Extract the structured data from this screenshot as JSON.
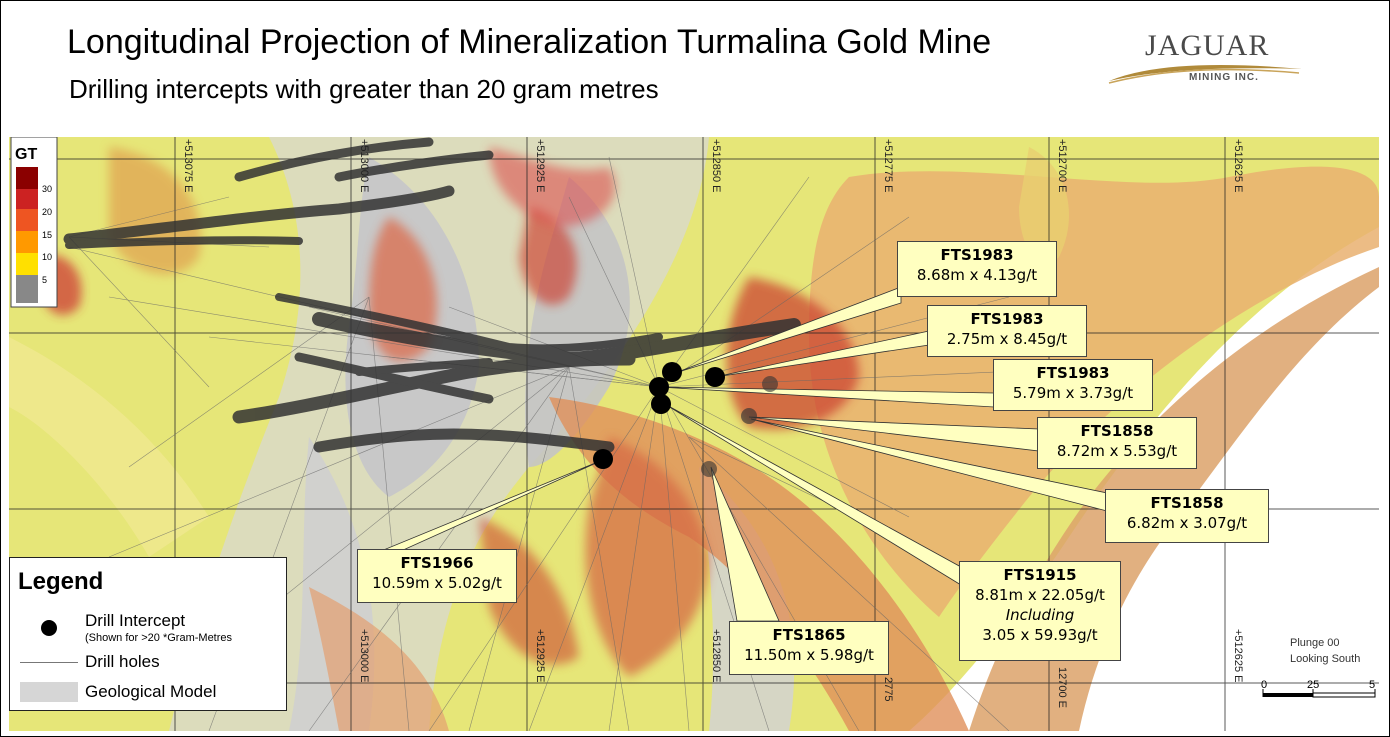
{
  "header": {
    "title": "Longitudinal Projection of Mineralization Turmalina Gold Mine",
    "subtitle": "Drilling intercepts with greater than 20 gram metres"
  },
  "logo": {
    "brand": "JAGUAR",
    "sub": "MINING INC."
  },
  "grid": {
    "eastings_top": [
      "+513075 E",
      "+513000 E",
      "+512925 E",
      "+512850 E",
      "+512775 E",
      "+512700 E",
      "+512625 E"
    ],
    "eastings_bottom": [
      "+513000 E",
      "+512925 E",
      "+512850 E",
      "2775",
      "12700 E",
      "+512625 E"
    ]
  },
  "gt_scale": {
    "title": "GT",
    "ticks": [
      "30",
      "20",
      "15",
      "10",
      "5"
    ],
    "colors": [
      "#8b0000",
      "#cc2222",
      "#ee5522",
      "#ff9900",
      "#ffe000",
      "#ffff40",
      "#888888"
    ]
  },
  "intercepts": [
    {
      "hole": "FTS1983",
      "values": [
        "8.68m x 4.13g/t"
      ]
    },
    {
      "hole": "FTS1983",
      "values": [
        "2.75m x 8.45g/t"
      ]
    },
    {
      "hole": "FTS1983",
      "values": [
        "5.79m x 3.73g/t"
      ]
    },
    {
      "hole": "FTS1858",
      "values": [
        "8.72m x 5.53g/t"
      ]
    },
    {
      "hole": "FTS1858",
      "values": [
        "6.82m x 3.07g/t"
      ]
    },
    {
      "hole": "FTS1915",
      "values": [
        "8.81m x 22.05g/t",
        "3.05 x 59.93g/t"
      ],
      "including": "Including"
    },
    {
      "hole": "FTS1865",
      "values": [
        "11.50m x 5.98g/t"
      ]
    },
    {
      "hole": "FTS1966",
      "values": [
        "10.59m x 5.02g/t"
      ]
    }
  ],
  "legend": {
    "title": "Legend",
    "intercept_label": "Drill Intercept",
    "intercept_note": "(Shown for >20 *Gram-Metres",
    "holes_label": "Drill holes",
    "model_label": "Geological Model"
  },
  "view": {
    "plunge": "Plunge 00",
    "looking": "Looking South"
  },
  "scale": {
    "ticks": [
      "0",
      "25",
      "5"
    ]
  },
  "colors": {
    "callout_fill": "#ffffc0",
    "yellow_zone": "#e8e860",
    "orange_zone": "#e0a060",
    "red_zone": "#cc3322",
    "gray_model": "#cfcfcf"
  }
}
